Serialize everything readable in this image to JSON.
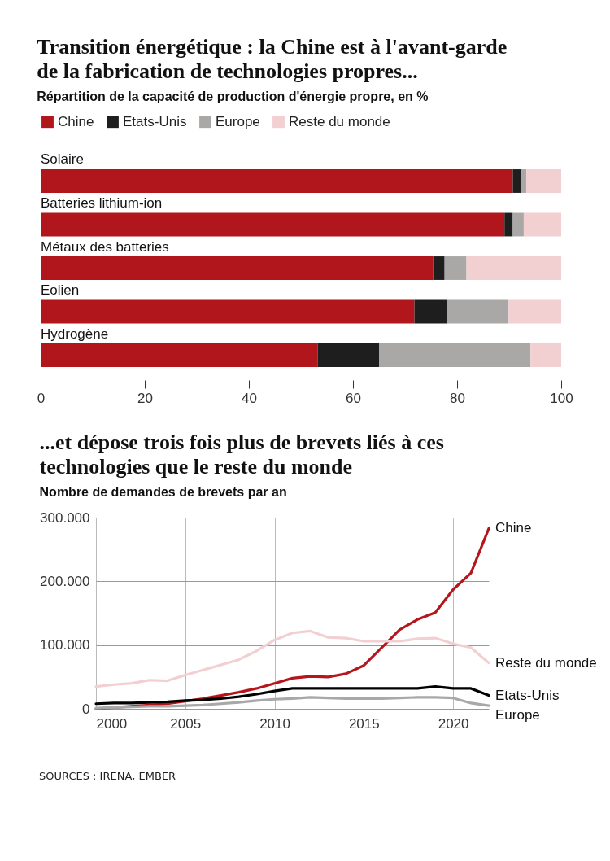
{
  "chart_data": [
    {
      "type": "bar",
      "title": "Transition énergétique : la Chine est à l'avant-garde de la fabrication de technologies propres...",
      "subtitle": "Répartition de la capacité de production d'énergie propre, en %",
      "orientation": "horizontal",
      "stacked": true,
      "categories": [
        "Solaire",
        "Batteries lithium-ion",
        "Métaux des batteries",
        "Eolien",
        "Hydrogène"
      ],
      "series": [
        {
          "name": "Chine",
          "color": "#b0161b",
          "values": [
            90.7,
            89.1,
            75.4,
            71.8,
            53.2
          ]
        },
        {
          "name": "Etats-Unis",
          "color": "#1e1e1e",
          "values": [
            1.6,
            1.6,
            2.2,
            6.3,
            11.8
          ]
        },
        {
          "name": "Europe",
          "color": "#aaa7a7",
          "values": [
            1.0,
            2.1,
            4.2,
            11.8,
            29.1
          ]
        },
        {
          "name": "Reste du monde",
          "color": "#f2cfd1",
          "values": [
            6.7,
            7.2,
            18.2,
            10.1,
            5.9
          ]
        }
      ],
      "xlim": [
        0,
        100
      ],
      "xticks": [
        0,
        20,
        40,
        60,
        80,
        100
      ],
      "legend": "top left",
      "grid": false
    },
    {
      "type": "line",
      "title": "...et dépose trois fois plus de brevets liés à ces technologies que le reste du monde",
      "subtitle": "Nombre de demandes de brevets par an",
      "annotations": [
        "SOURCES : IRENA, EMBER"
      ],
      "x": [
        2000,
        2001,
        2002,
        2003,
        2004,
        2005,
        2006,
        2007,
        2008,
        2009,
        2010,
        2011,
        2012,
        2013,
        2014,
        2015,
        2016,
        2017,
        2018,
        2019,
        2020,
        2021,
        2022
      ],
      "series": [
        {
          "name": "Chine",
          "color": "#b5161b",
          "values": [
            0,
            2000,
            4000,
            6000,
            8000,
            12000,
            16000,
            21000,
            26000,
            32000,
            40000,
            48000,
            51000,
            50000,
            55000,
            68000,
            96000,
            124000,
            140000,
            151000,
            187000,
            213000,
            283000
          ]
        },
        {
          "name": "Reste du monde",
          "color": "#f2cfd1",
          "values": [
            35000,
            38000,
            40000,
            45000,
            44000,
            53000,
            61000,
            69000,
            77000,
            91000,
            108000,
            119000,
            122000,
            112000,
            111000,
            106000,
            106000,
            106000,
            110000,
            111000,
            102000,
            96000,
            72000
          ]
        },
        {
          "name": "Etats-Unis",
          "color": "#000000",
          "values": [
            8000,
            9000,
            9000,
            10000,
            11000,
            13000,
            14000,
            16000,
            19000,
            23000,
            28000,
            32000,
            32000,
            32000,
            32000,
            32000,
            32000,
            32000,
            32000,
            35000,
            32000,
            32000,
            21000
          ]
        },
        {
          "name": "Europe",
          "color": "#a8a8a8",
          "values": [
            1000,
            2000,
            3000,
            4000,
            4000,
            5000,
            6000,
            8000,
            10000,
            13000,
            15000,
            16000,
            18000,
            17000,
            16000,
            16000,
            16000,
            17000,
            18000,
            18000,
            17000,
            9000,
            5000
          ]
        }
      ],
      "xlim": [
        2000,
        2022
      ],
      "xticks": [
        2000,
        2005,
        2010,
        2015,
        2020
      ],
      "ylim": [
        0,
        300000
      ],
      "yticks": [
        {
          "value": 0,
          "label": "0"
        },
        {
          "value": 100000,
          "label": "100.000"
        },
        {
          "value": 200000,
          "label": "200.000"
        },
        {
          "value": 300000,
          "label": "300.000"
        }
      ],
      "grid": true,
      "legend": false,
      "line_style": "solid",
      "marker": "none"
    }
  ]
}
